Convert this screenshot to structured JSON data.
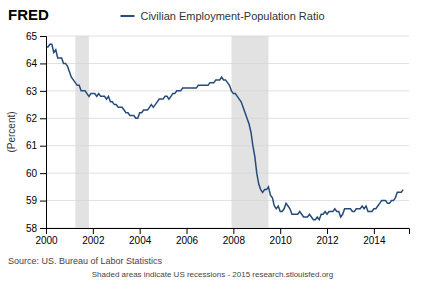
{
  "chart_data": {
    "type": "line",
    "title": "Civilian Employment-Population Ratio",
    "y_label": "(Percent)",
    "annotations": [
      "FRED",
      "Source: US. Bureau of Labor Statistics",
      "Shaded areas indicate US recessions - 2015 research.stlouisfed.org"
    ],
    "color": "#254b7a",
    "grid": true,
    "xlim": [
      2000.0,
      2015.5
    ],
    "xticks": [
      2000,
      2002,
      2004,
      2006,
      2008,
      2010,
      2012,
      2014
    ],
    "ylim": [
      58,
      65
    ],
    "yticks": [
      58,
      59,
      60,
      61,
      62,
      63,
      64,
      65
    ],
    "recessions": [
      [
        2001.25,
        2001.83
      ],
      [
        2007.92,
        2009.5
      ]
    ],
    "x": [
      2000.0,
      2000.083,
      2000.167,
      2000.25,
      2000.333,
      2000.417,
      2000.5,
      2000.583,
      2000.667,
      2000.75,
      2000.833,
      2000.917,
      2001.0,
      2001.083,
      2001.167,
      2001.25,
      2001.333,
      2001.417,
      2001.5,
      2001.583,
      2001.667,
      2001.75,
      2001.833,
      2001.917,
      2002.0,
      2002.083,
      2002.167,
      2002.25,
      2002.333,
      2002.417,
      2002.5,
      2002.583,
      2002.667,
      2002.75,
      2002.833,
      2002.917,
      2003.0,
      2003.083,
      2003.167,
      2003.25,
      2003.333,
      2003.417,
      2003.5,
      2003.583,
      2003.667,
      2003.75,
      2003.833,
      2003.917,
      2004.0,
      2004.083,
      2004.167,
      2004.25,
      2004.333,
      2004.417,
      2004.5,
      2004.583,
      2004.667,
      2004.75,
      2004.833,
      2004.917,
      2005.0,
      2005.083,
      2005.167,
      2005.25,
      2005.333,
      2005.417,
      2005.5,
      2005.583,
      2005.667,
      2005.75,
      2005.833,
      2005.917,
      2006.0,
      2006.083,
      2006.167,
      2006.25,
      2006.333,
      2006.417,
      2006.5,
      2006.583,
      2006.667,
      2006.75,
      2006.833,
      2006.917,
      2007.0,
      2007.083,
      2007.167,
      2007.25,
      2007.333,
      2007.417,
      2007.5,
      2007.583,
      2007.667,
      2007.75,
      2007.833,
      2007.917,
      2008.0,
      2008.083,
      2008.167,
      2008.25,
      2008.333,
      2008.417,
      2008.5,
      2008.583,
      2008.667,
      2008.75,
      2008.833,
      2008.917,
      2009.0,
      2009.083,
      2009.167,
      2009.25,
      2009.333,
      2009.417,
      2009.5,
      2009.583,
      2009.667,
      2009.75,
      2009.833,
      2009.917,
      2010.0,
      2010.083,
      2010.167,
      2010.25,
      2010.333,
      2010.417,
      2010.5,
      2010.583,
      2010.667,
      2010.75,
      2010.833,
      2010.917,
      2011.0,
      2011.083,
      2011.167,
      2011.25,
      2011.333,
      2011.417,
      2011.5,
      2011.583,
      2011.667,
      2011.75,
      2011.833,
      2011.917,
      2012.0,
      2012.083,
      2012.167,
      2012.25,
      2012.333,
      2012.417,
      2012.5,
      2012.583,
      2012.667,
      2012.75,
      2012.833,
      2012.917,
      2013.0,
      2013.083,
      2013.167,
      2013.25,
      2013.333,
      2013.417,
      2013.5,
      2013.583,
      2013.667,
      2013.75,
      2013.833,
      2013.917,
      2014.0,
      2014.083,
      2014.167,
      2014.25,
      2014.333,
      2014.417,
      2014.5,
      2014.583,
      2014.667,
      2014.75,
      2014.833,
      2014.917,
      2015.0,
      2015.083,
      2015.167,
      2015.25
    ],
    "values": [
      64.6,
      64.6,
      64.7,
      64.7,
      64.4,
      64.5,
      64.2,
      64.2,
      64.2,
      64.0,
      64.0,
      63.9,
      63.7,
      63.5,
      63.4,
      63.3,
      63.2,
      63.2,
      63.0,
      63.0,
      63.0,
      62.9,
      62.8,
      62.9,
      62.9,
      62.9,
      62.8,
      62.9,
      62.8,
      62.8,
      62.8,
      62.7,
      62.8,
      62.6,
      62.6,
      62.5,
      62.5,
      62.4,
      62.4,
      62.4,
      62.3,
      62.2,
      62.2,
      62.1,
      62.1,
      62.1,
      62.0,
      62.0,
      62.2,
      62.2,
      62.3,
      62.3,
      62.3,
      62.4,
      62.5,
      62.4,
      62.5,
      62.6,
      62.7,
      62.7,
      62.7,
      62.8,
      62.8,
      62.7,
      62.8,
      62.9,
      62.9,
      63.0,
      63.0,
      63.0,
      63.1,
      63.1,
      63.1,
      63.1,
      63.1,
      63.1,
      63.1,
      63.1,
      63.2,
      63.2,
      63.2,
      63.2,
      63.2,
      63.2,
      63.3,
      63.3,
      63.3,
      63.4,
      63.4,
      63.4,
      63.5,
      63.4,
      63.4,
      63.3,
      63.2,
      63.0,
      62.9,
      62.9,
      62.8,
      62.7,
      62.6,
      62.4,
      62.2,
      62.0,
      61.8,
      61.5,
      61.0,
      60.6,
      60.0,
      59.6,
      59.4,
      59.3,
      59.4,
      59.4,
      59.5,
      59.2,
      59.1,
      58.8,
      58.7,
      58.8,
      58.6,
      58.6,
      58.7,
      58.9,
      58.8,
      58.7,
      58.5,
      58.5,
      58.5,
      58.5,
      58.6,
      58.5,
      58.4,
      58.4,
      58.4,
      58.5,
      58.4,
      58.3,
      58.3,
      58.4,
      58.3,
      58.5,
      58.5,
      58.6,
      58.5,
      58.6,
      58.6,
      58.6,
      58.7,
      58.6,
      58.6,
      58.4,
      58.5,
      58.7,
      58.7,
      58.7,
      58.7,
      58.6,
      58.6,
      58.7,
      58.7,
      58.7,
      58.8,
      58.7,
      58.8,
      58.6,
      58.6,
      58.6,
      58.7,
      58.7,
      58.8,
      58.9,
      59.0,
      59.0,
      59.0,
      58.9,
      58.9,
      59.0,
      59.0,
      59.1,
      59.3,
      59.3,
      59.3,
      59.4
    ]
  }
}
